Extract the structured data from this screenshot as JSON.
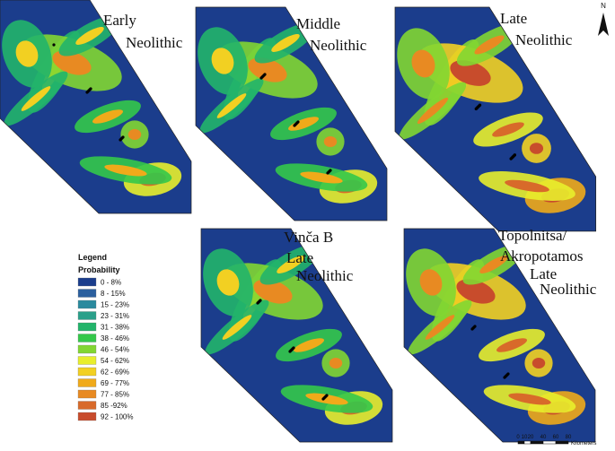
{
  "panels": [
    {
      "lines": [
        "Early",
        "Neolithic"
      ]
    },
    {
      "lines": [
        "Middle",
        "Neolithic"
      ]
    },
    {
      "lines": [
        "Late",
        "Neolithic"
      ]
    },
    {
      "lines": [
        "Vinča B",
        "Late",
        "Neolithic"
      ]
    },
    {
      "lines": [
        "Topolnitsa/",
        "Akropotamos",
        "Late",
        "Neolithic"
      ]
    }
  ],
  "legend": {
    "title": "Legend",
    "subtitle": "Probability",
    "items": [
      {
        "label": "0 - 8%",
        "color": "#1b3d8c"
      },
      {
        "label": "8 - 15%",
        "color": "#2b5f9e"
      },
      {
        "label": "15 - 23%",
        "color": "#2a8a9e"
      },
      {
        "label": "23 - 31%",
        "color": "#2aa08a"
      },
      {
        "label": "31 - 38%",
        "color": "#22b46a"
      },
      {
        "label": "38 - 46%",
        "color": "#34c84a"
      },
      {
        "label": "46 - 54%",
        "color": "#82d632"
      },
      {
        "label": "54 - 62%",
        "color": "#e8ee2c"
      },
      {
        "label": "62 - 69%",
        "color": "#f2d022"
      },
      {
        "label": "69 - 77%",
        "color": "#f0aa1a"
      },
      {
        "label": "77 - 85%",
        "color": "#e88a22"
      },
      {
        "label": "85 -92%",
        "color": "#d86a2a"
      },
      {
        "label": "92 - 100%",
        "color": "#c84c2c"
      }
    ]
  },
  "scale_bar": {
    "ticks": [
      "0",
      "10",
      "20",
      "40",
      "60",
      "80"
    ],
    "unit": "Kilometers"
  },
  "north": "N"
}
